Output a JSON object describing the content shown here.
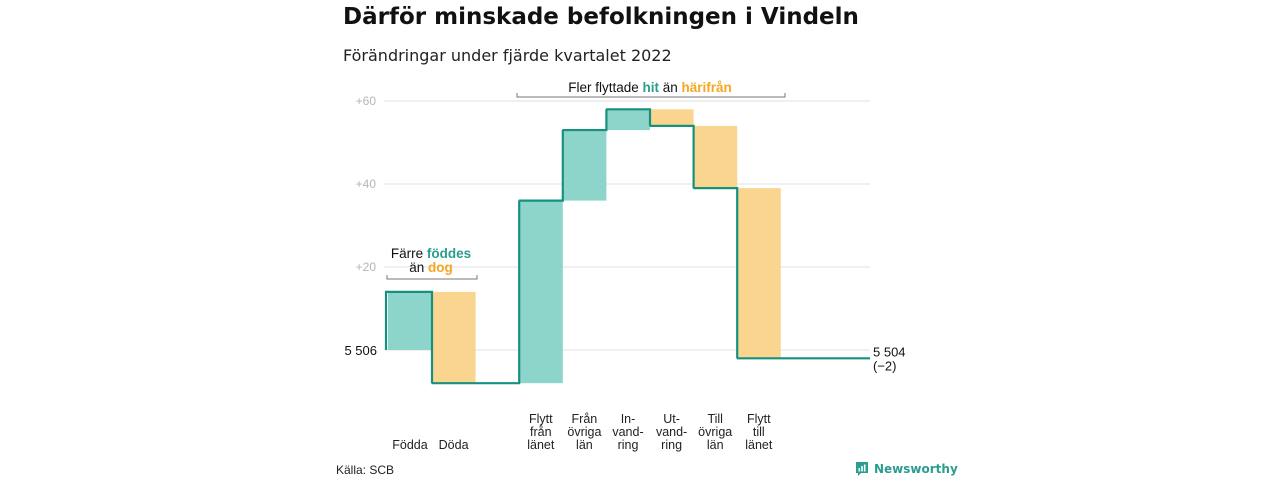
{
  "title": "Därför minskade befolkningen i Vindeln",
  "subtitle": "Förändringar under fjärde kvartalet 2022",
  "source": "Källa: SCB",
  "brand": "Newsworthy",
  "colors": {
    "increase_fill": "#8dd5cb",
    "decrease_fill": "#fad590",
    "line": "#16917f",
    "grid": "#e2e2e2",
    "accent_green": "#2a9d8f",
    "accent_orange": "#f5a623"
  },
  "chart_data": {
    "type": "waterfall",
    "start_label": "5 506",
    "end_label": "5 504",
    "end_change": "(−2)",
    "baseline": 5506,
    "y_ticks": [
      "+60",
      "+40",
      "+20"
    ],
    "y_tick_values": [
      60,
      40,
      20
    ],
    "ylim": [
      -8,
      62
    ],
    "steps": [
      {
        "label": [
          "Födda"
        ],
        "change": 14,
        "kind": "increase"
      },
      {
        "label": [
          "Döda"
        ],
        "change": -22,
        "kind": "decrease"
      },
      {
        "label": [
          ""
        ],
        "change": 0,
        "kind": "none"
      },
      {
        "label": [
          "Flytt",
          "från",
          "länet"
        ],
        "change": 44,
        "kind": "increase"
      },
      {
        "label": [
          "Från",
          "övriga",
          "län"
        ],
        "change": 17,
        "kind": "increase"
      },
      {
        "label": [
          "In-",
          "vand-",
          "ring"
        ],
        "change": 5,
        "kind": "increase"
      },
      {
        "label": [
          "Ut-",
          "vand-",
          "ring"
        ],
        "change": -4,
        "kind": "decrease"
      },
      {
        "label": [
          "Till",
          "övriga",
          "län"
        ],
        "change": -15,
        "kind": "decrease"
      },
      {
        "label": [
          "Flytt",
          "till",
          "länet"
        ],
        "change": -41,
        "kind": "decrease"
      }
    ],
    "annotations": [
      {
        "line1": "Färre ",
        "hl1": "föddes",
        "line2": "än ",
        "hl2": "dog"
      },
      {
        "line1": "Fler flyttade ",
        "hl1": "hit",
        "mid": " än ",
        "hl2": "härifrån"
      }
    ]
  }
}
